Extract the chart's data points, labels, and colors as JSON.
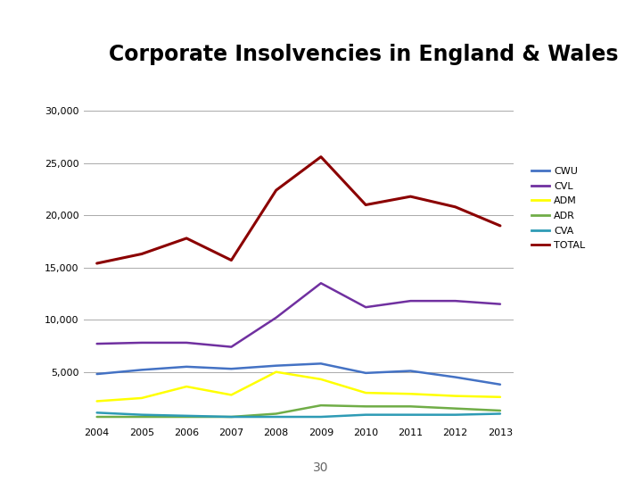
{
  "title": "Corporate Insolvencies in England & Wales",
  "years": [
    2004,
    2005,
    2006,
    2007,
    2008,
    2009,
    2010,
    2011,
    2012,
    2013
  ],
  "series": {
    "CWU": {
      "values": [
        4800,
        5200,
        5500,
        5300,
        5600,
        5800,
        4900,
        5100,
        4500,
        3800
      ],
      "color": "#4472C4",
      "linewidth": 1.8
    },
    "CVL": {
      "values": [
        7700,
        7800,
        7800,
        7400,
        10200,
        13500,
        11200,
        11800,
        11800,
        11500
      ],
      "color": "#7030A0",
      "linewidth": 1.8
    },
    "ADM": {
      "values": [
        2200,
        2500,
        3600,
        2800,
        5000,
        4300,
        3000,
        2900,
        2700,
        2600
      ],
      "color": "#FFFF00",
      "linewidth": 1.8
    },
    "ADR": {
      "values": [
        700,
        700,
        700,
        700,
        1000,
        1800,
        1700,
        1700,
        1500,
        1300
      ],
      "color": "#70AD47",
      "linewidth": 1.8
    },
    "CVA": {
      "values": [
        1100,
        900,
        800,
        700,
        700,
        700,
        900,
        900,
        900,
        1000
      ],
      "color": "#2E9BB5",
      "linewidth": 1.8
    },
    "TOTAL": {
      "values": [
        15400,
        16300,
        17800,
        15700,
        22400,
        25600,
        21000,
        21800,
        20800,
        19000
      ],
      "color": "#8B0000",
      "linewidth": 2.2
    }
  },
  "ylim": [
    0,
    30000
  ],
  "yticks": [
    0,
    5000,
    10000,
    15000,
    20000,
    25000,
    30000
  ],
  "ytick_labels": [
    "",
    "5,000",
    "10,000",
    "15,000",
    "20,000",
    "25,000",
    "30,000"
  ],
  "background_color": "#FFFFFF",
  "plot_bg_color": "#FFFFFF",
  "grid_color": "#AAAAAA",
  "title_fontsize": 17,
  "tick_fontsize": 8,
  "legend_fontsize": 8,
  "top_stripe1_color": "#5C2D6E",
  "top_stripe2_color": "#8B1A2A",
  "top_stripe3_color": "#B8A89A"
}
